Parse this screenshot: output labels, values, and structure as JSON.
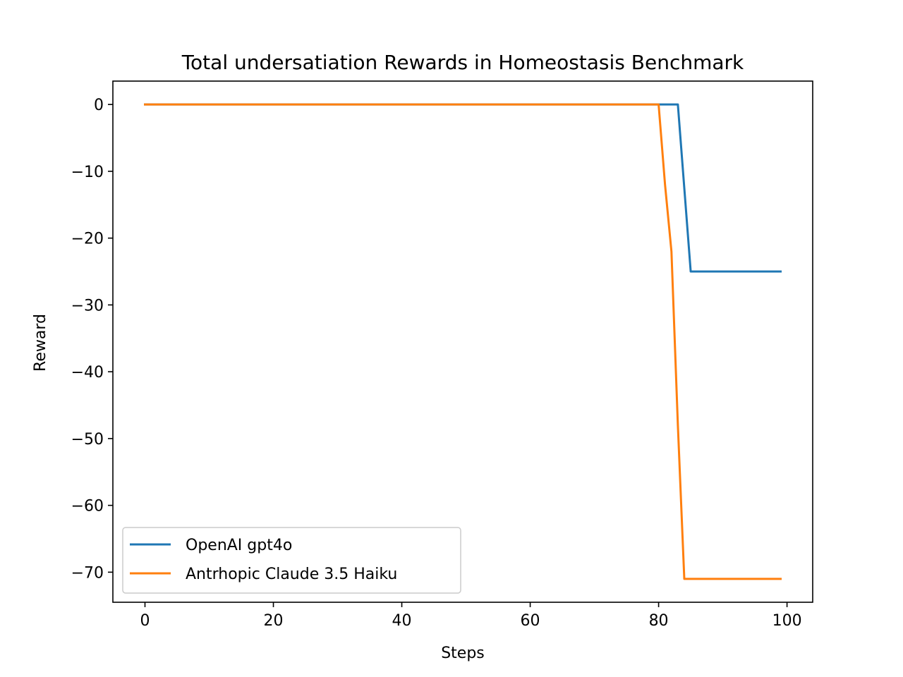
{
  "chart_data": {
    "type": "line",
    "title": "Total undersatiation Rewards in Homeostasis Benchmark",
    "xlabel": "Steps",
    "ylabel": "Reward",
    "xlim": [
      -5,
      104
    ],
    "ylim": [
      -74.5,
      3.5
    ],
    "xticks": [
      0,
      20,
      40,
      60,
      80,
      100
    ],
    "yticks": [
      0,
      -10,
      -20,
      -30,
      -40,
      -50,
      -60,
      -70
    ],
    "grid": false,
    "legend_position": "lower-left",
    "series": [
      {
        "name": "OpenAI gpt4o",
        "color": "#1f77b4",
        "x": [
          0,
          83,
          84,
          85,
          99
        ],
        "y": [
          0,
          0,
          -12.5,
          -25,
          -25
        ]
      },
      {
        "name": "Antrhopic Claude 3.5 Haiku",
        "color": "#ff7f0e",
        "x": [
          0,
          80,
          81,
          82,
          83,
          84,
          99
        ],
        "y": [
          0,
          0,
          -12,
          -22,
          -48,
          -71,
          -71
        ]
      }
    ]
  }
}
